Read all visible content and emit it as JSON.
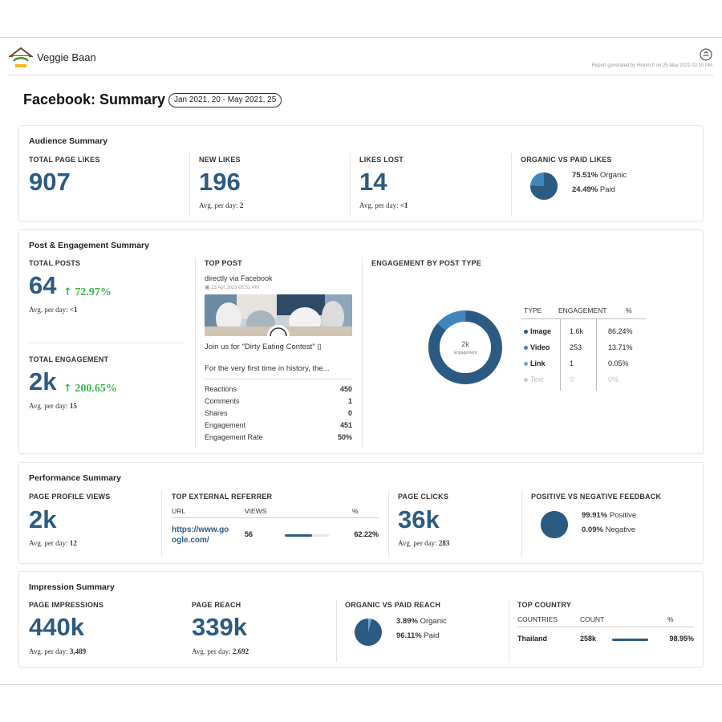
{
  "header": {
    "brand": "Veggie Baan",
    "logo_text": "Veggie Baan",
    "report_meta": "Report generated by Heinrich on 25 May 2021 02:10 PM"
  },
  "page": {
    "title": "Facebook: Summary",
    "date_range": "Jan 2021, 20 - May 2021, 25"
  },
  "audience": {
    "title": "Audience Summary",
    "total_likes_label": "TOTAL PAGE LIKES",
    "total_likes": "907",
    "new_likes_label": "NEW LIKES",
    "new_likes": "196",
    "new_likes_avg_label": "Avg. per day:",
    "new_likes_avg": "2",
    "likes_lost_label": "LIKES LOST",
    "likes_lost": "14",
    "likes_lost_avg_label": "Avg. per day:",
    "likes_lost_avg": "<1",
    "organic_paid_label": "ORGANIC VS PAID LIKES",
    "organic_pct": "75.51%",
    "organic_text": "Organic",
    "paid_pct": "24.49%",
    "paid_text": "Paid",
    "organic_fraction": 0.7551
  },
  "post": {
    "title": "Post & Engagement Summary",
    "total_posts_label": "TOTAL POSTS",
    "total_posts": "64",
    "posts_growth": "72.97%",
    "posts_avg_label": "Avg. per day:",
    "posts_avg": "<1",
    "total_engagement_label": "TOTAL ENGAGEMENT",
    "total_engagement": "2k",
    "engagement_growth": "200.65%",
    "engagement_avg_label": "Avg. per day:",
    "engagement_avg": "15",
    "top_post_label": "TOP POST",
    "top_post_source": "directly via Facebook",
    "top_post_date": "23 Apr 2021 05:51 PM",
    "top_post_line1": "Join us for \"Dirty Eating Contest\" ▯",
    "top_post_line2": "For the very first time in history, the...",
    "stats": [
      {
        "label": "Reactions",
        "value": "450"
      },
      {
        "label": "Comments",
        "value": "1"
      },
      {
        "label": "Shares",
        "value": "0"
      },
      {
        "label": "Engagement",
        "value": "451"
      },
      {
        "label": "Engagement Rate",
        "value": "50%"
      }
    ],
    "by_type_label": "ENGAGEMENT BY POST TYPE",
    "donut_center_value": "2k",
    "donut_center_label": "Engagement",
    "table_headers": {
      "type": "TYPE",
      "engagement": "ENGAGEMENT",
      "pct": "%"
    },
    "types": [
      {
        "type": "Image",
        "engagement": "1.6k",
        "pct": "86.24%",
        "fraction": 0.8624,
        "color": "#2b5b82"
      },
      {
        "type": "Video",
        "engagement": "253",
        "pct": "13.71%",
        "fraction": 0.1371,
        "color": "#3f86bf"
      },
      {
        "type": "Link",
        "engagement": "1",
        "pct": "0.05%",
        "fraction": 0.0005,
        "color": "#6fa7d3"
      },
      {
        "type": "Text",
        "engagement": "0",
        "pct": "0%",
        "fraction": 0,
        "color": "#cccccc"
      }
    ]
  },
  "performance": {
    "title": "Performance Summary",
    "profile_views_label": "PAGE PROFILE VIEWS",
    "profile_views": "2k",
    "profile_views_avg_label": "Avg. per day:",
    "profile_views_avg": "12",
    "referrer_label": "TOP EXTERNAL REFERRER",
    "ref_headers": {
      "url": "URL",
      "views": "VIEWS",
      "pct": "%"
    },
    "ref_url_line1": "https://www.go",
    "ref_url_line2": "ogle.com/",
    "ref_views": "56",
    "ref_pct": "62.22%",
    "ref_fraction": 0.6222,
    "page_clicks_label": "PAGE CLICKS",
    "page_clicks": "36k",
    "page_clicks_avg_label": "Avg. per day:",
    "page_clicks_avg": "283",
    "feedback_label": "POSITIVE VS NEGATIVE FEEDBACK",
    "positive_pct": "99.91%",
    "positive_text": "Positive",
    "negative_pct": "0.09%",
    "negative_text": "Negative",
    "positive_fraction": 0.9991
  },
  "impression": {
    "title": "Impression Summary",
    "impressions_label": "PAGE IMPRESSIONS",
    "impressions": "440k",
    "impressions_avg_label": "Avg. per day:",
    "impressions_avg": "3,489",
    "reach_label": "PAGE REACH",
    "reach": "339k",
    "reach_avg_label": "Avg. per day:",
    "reach_avg": "2,692",
    "organic_reach_label": "ORGANIC VS PAID REACH",
    "organic_pct": "3.89%",
    "organic_text": "Organic",
    "paid_pct": "96.11%",
    "paid_text": "Paid",
    "organic_fraction": 0.0389,
    "country_label": "TOP COUNTRY",
    "country_headers": {
      "country": "COUNTRIES",
      "count": "COUNT",
      "pct": "%"
    },
    "country": "Thailand",
    "country_count": "258k",
    "country_pct": "98.95%",
    "country_fraction": 0.9895
  },
  "colors": {
    "accent": "#2b5b82",
    "accent_light": "#3f86bf",
    "growth": "#3bb54a"
  }
}
